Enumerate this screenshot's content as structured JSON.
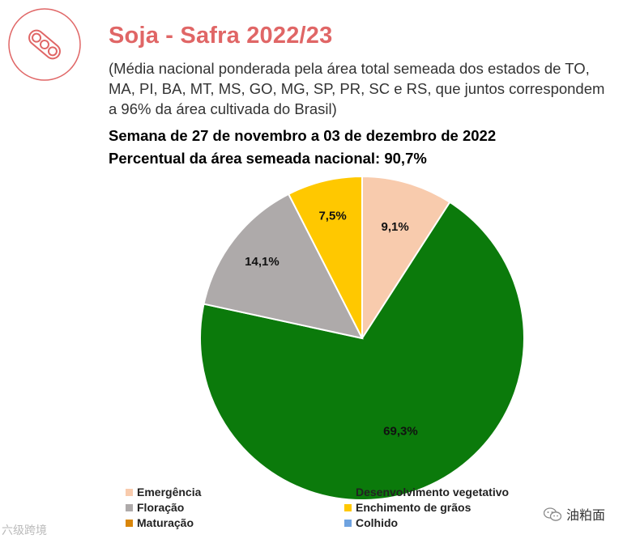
{
  "header": {
    "title": "Soja - Safra 2022/23",
    "subtitle": "(Média nacional ponderada pela área total semeada dos estados de TO, MA, PI, BA, MT, MS, GO, MG, SP, PR, SC e RS, que juntos correspondem a 96% da área cultivada do Brasil)",
    "week": "Semana de 27 de novembro a 03 de dezembro de 2022",
    "sown_area": "Percentual da área semeada nacional: 90,7%"
  },
  "logo": {
    "icon": "soybean-pod-icon",
    "color": "#e06666"
  },
  "chart_data": {
    "type": "pie",
    "start": "12 o'clock",
    "direction": "clockwise",
    "slices": [
      {
        "label": "Emergência",
        "value": 9.1,
        "display": "9,1%",
        "color": "#f8cbad"
      },
      {
        "label": "Desenvolvimento vegetativo",
        "value": 69.3,
        "display": "69,3%",
        "color": "#0b7a0b"
      },
      {
        "label": "Floração",
        "value": 14.1,
        "display": "14,1%",
        "color": "#aeaaaa"
      },
      {
        "label": "Enchimento de grãos",
        "value": 7.5,
        "display": "7,5%",
        "color": "#ffc800"
      },
      {
        "label": "Maturação",
        "value": 0,
        "display": "",
        "color": "#d9860a"
      },
      {
        "label": "Colhido",
        "value": 0,
        "display": "",
        "color": "#6fa3e0"
      }
    ],
    "legend": [
      {
        "label": "Emergência",
        "color": "#f8cbad"
      },
      {
        "label": "Desenvolvimento vegetativo",
        "color": "#0b7a0b"
      },
      {
        "label": "Floração",
        "color": "#aeaaaa"
      },
      {
        "label": "Enchimento de grãos",
        "color": "#ffc800"
      },
      {
        "label": "Maturação",
        "color": "#d9860a"
      },
      {
        "label": "Colhido",
        "color": "#6fa3e0"
      }
    ],
    "legend_position": "bottom"
  },
  "watermarks": {
    "left": "六级跨境",
    "right": "油粕面"
  }
}
